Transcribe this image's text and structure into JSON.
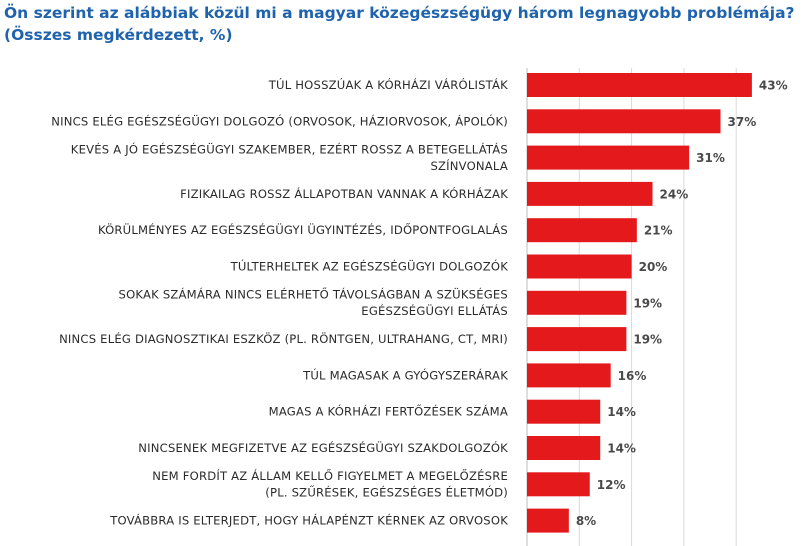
{
  "title_lines": [
    "Ön szerint az alábbiak közül mi a magyar közegészségügy három legnagyobb problémája?",
    "(Összes megkérdezett, %)"
  ],
  "colors": {
    "bar": "#e3191c",
    "title": "#1f63ad",
    "grid": "#d9d9d9"
  },
  "chart_data": {
    "type": "bar",
    "orientation": "horizontal",
    "title": "Ön szerint az alábbiak közül mi a magyar közegészségügy három legnagyobb problémája? (Összes megkérdezett, %)",
    "categories": [
      [
        "TÚL HOSSZÚAK A KÓRHÁZI VÁRÓLISTÁK"
      ],
      [
        "NINCS ELÉG EGÉSZSÉGÜGYI DOLGOZÓ (ORVOSOK, HÁZIORVOSOK, ÁPOLÓK)"
      ],
      [
        "KEVÉS A JÓ EGÉSZSÉGÜGYI SZAKEMBER, EZÉRT ROSSZ A BETEGELLÁTÁS",
        "SZÍNVONALA"
      ],
      [
        "FIZIKAILAG ROSSZ ÁLLAPOTBAN VANNAK A KÓRHÁZAK"
      ],
      [
        "KÖRÜLMÉNYES AZ EGÉSZSÉGÜGYI ÜGYINTÉZÉS, IDŐPONTFOGLALÁS"
      ],
      [
        "TÚLTERHELTEK AZ EGÉSZSÉGÜGYI DOLGOZÓK"
      ],
      [
        "SOKAK SZÁMÁRA NINCS ELÉRHETŐ TÁVOLSÁGBAN A SZÜKSÉGES",
        "EGÉSZSÉGÜGYI ELLÁTÁS"
      ],
      [
        "NINCS ELÉG DIAGNOSZTIKAI ESZKÖZ (PL. RÖNTGEN, ULTRAHANG, CT, MRI)"
      ],
      [
        "TÚL MAGASAK A GYÓGYSZERÁRAK"
      ],
      [
        "MAGAS A KÓRHÁZI FERTŐZÉSEK SZÁMA"
      ],
      [
        "NINCSENEK MEGFIZETVE AZ EGÉSZSÉGÜGYI SZAKDOLGOZÓK"
      ],
      [
        "NEM FORDÍT AZ ÁLLAM KELLŐ FIGYELMET A MEGELŐZÉSRE",
        "(PL. SZŰRÉSEK, EGÉSZSÉGES ÉLETMÓD)"
      ],
      [
        "TOVÁBBRA IS ELTERJEDT, HOGY HÁLAPÉNZT KÉRNEK AZ ORVOSOK"
      ]
    ],
    "values": [
      43,
      37,
      31,
      24,
      21,
      20,
      19,
      19,
      16,
      14,
      14,
      12,
      8
    ],
    "value_labels": [
      "43%",
      "37%",
      "31%",
      "24%",
      "21%",
      "20%",
      "19%",
      "19%",
      "16%",
      "14%",
      "14%",
      "12%",
      "8%"
    ],
    "xlim": [
      0,
      50
    ],
    "grid": true
  }
}
